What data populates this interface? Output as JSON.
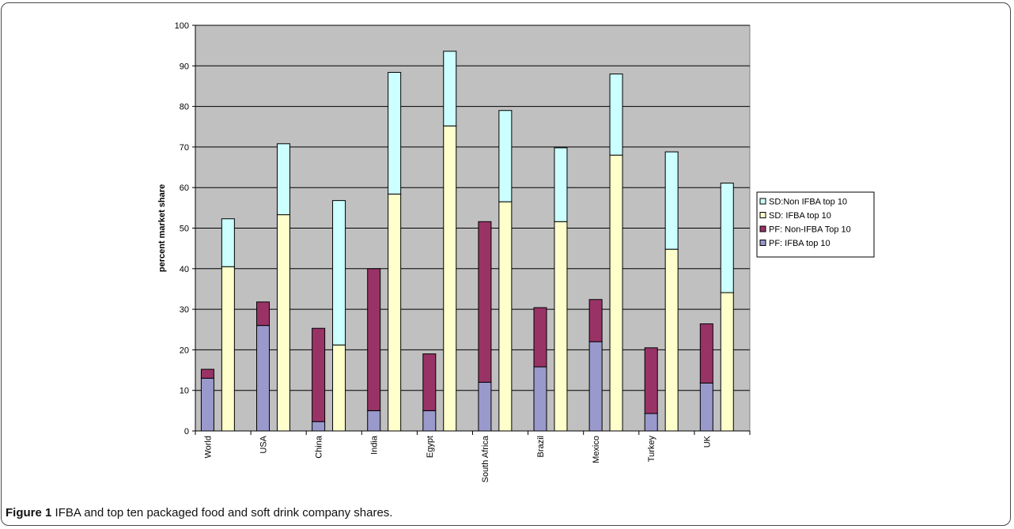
{
  "caption": {
    "label": "Figure 1",
    "text": "IFBA and top ten packaged food and soft drink company shares."
  },
  "chart_data": {
    "type": "bar",
    "stacked": true,
    "title": "",
    "xlabel": "",
    "ylabel": "percent market share",
    "ylim": [
      0,
      100
    ],
    "yticks": [
      0,
      10,
      20,
      30,
      40,
      50,
      60,
      70,
      80,
      90,
      100
    ],
    "grid": true,
    "legend_position": "right",
    "categories": [
      "World",
      "USA",
      "China",
      "India",
      "Egypt",
      "South Africa",
      "Brazil",
      "Mexico",
      "Turkey",
      "UK"
    ],
    "groups": [
      {
        "name": "PF",
        "series": [
          {
            "name": "PF: IFBA top 10",
            "color": "#9999cc",
            "values": [
              13,
              26,
              2.3,
              5,
              5,
              12,
              15.8,
              22,
              4.3,
              11.8
            ]
          },
          {
            "name": "PF: Non-IFBA Top 10",
            "color": "#993366",
            "values": [
              2.2,
              5.8,
              23,
              35,
              14,
              39.6,
              14.6,
              10.4,
              16.2,
              14.6
            ]
          }
        ]
      },
      {
        "name": "SD",
        "series": [
          {
            "name": "SD: IFBA top 10",
            "color": "#ffffcc",
            "values": [
              40.5,
              53.3,
              21.2,
              58.4,
              75.2,
              56.5,
              51.6,
              68,
              44.8,
              34.1
            ]
          },
          {
            "name": "SD:Non IFBA top 10",
            "color": "#ccffff",
            "values": [
              11.8,
              17.5,
              35.6,
              30,
              18.4,
              22.5,
              18.2,
              20,
              24,
              27
            ]
          }
        ]
      }
    ],
    "legend": [
      "SD:Non IFBA top 10",
      "SD: IFBA top 10",
      "PF: Non-IFBA Top 10",
      "PF: IFBA top 10"
    ],
    "colors": {
      "plot_bg": "#c0c0c0",
      "grid": "#000000"
    }
  }
}
